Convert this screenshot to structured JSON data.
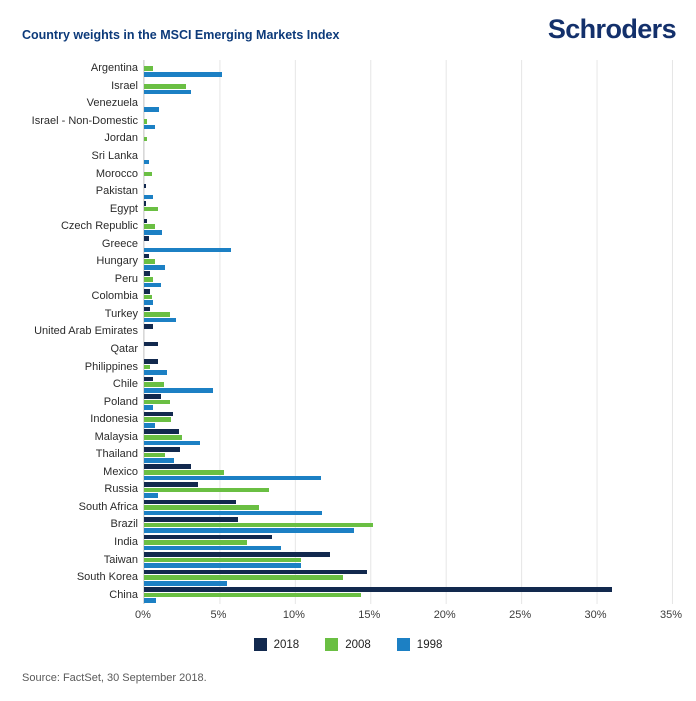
{
  "header": {
    "title": "Country weights in the MSCI Emerging Markets Index",
    "logo": "Schroders"
  },
  "footer": {
    "source": "Source: FactSet, 30 September 2018."
  },
  "chart_data": {
    "type": "bar",
    "orientation": "horizontal",
    "title": "Country weights in the MSCI Emerging Markets Index",
    "xlabel": "",
    "ylabel": "",
    "xlim": [
      0,
      35
    ],
    "xticks": [
      "0%",
      "5%",
      "10%",
      "15%",
      "20%",
      "25%",
      "30%",
      "35%"
    ],
    "grid": "vertical",
    "legend_position": "bottom",
    "categories": [
      "Argentina",
      "Israel",
      "Venezuela",
      "Israel - Non-Domestic",
      "Jordan",
      "Sri Lanka",
      "Morocco",
      "Pakistan",
      "Egypt",
      "Czech Republic",
      "Greece",
      "Hungary",
      "Peru",
      "Colombia",
      "Turkey",
      "United Arab Emirates",
      "Qatar",
      "Philippines",
      "Chile",
      "Poland",
      "Indonesia",
      "Malaysia",
      "Thailand",
      "Mexico",
      "Russia",
      "South Africa",
      "Brazil",
      "India",
      "Taiwan",
      "South Korea",
      "China"
    ],
    "series": [
      {
        "name": "2018",
        "color": "#12294e",
        "values": [
          0,
          0,
          0,
          0,
          0,
          0,
          0,
          0.1,
          0.1,
          0.2,
          0.3,
          0.3,
          0.4,
          0.4,
          0.4,
          0.6,
          0.9,
          0.9,
          0.6,
          1.1,
          1.9,
          2.3,
          2.4,
          3.1,
          3.6,
          6.1,
          6.2,
          8.5,
          12.3,
          14.8,
          31.0
        ]
      },
      {
        "name": "2008",
        "color": "#6abf43",
        "values": [
          0.6,
          2.8,
          0,
          0.2,
          0.2,
          0,
          0.5,
          0,
          0.9,
          0.7,
          0,
          0.7,
          0.6,
          0.5,
          1.7,
          0,
          0,
          0.4,
          1.3,
          1.7,
          1.8,
          2.5,
          1.4,
          5.3,
          8.3,
          7.6,
          15.2,
          6.8,
          10.4,
          13.2,
          14.4
        ]
      },
      {
        "name": "1998",
        "color": "#1c80c4",
        "values": [
          5.2,
          3.1,
          1.0,
          0.7,
          0,
          0.3,
          0,
          0.6,
          0,
          1.2,
          5.8,
          1.4,
          1.1,
          0.6,
          2.1,
          0,
          0,
          1.5,
          4.6,
          0.6,
          0.7,
          3.7,
          2.0,
          11.7,
          0.9,
          11.8,
          13.9,
          9.1,
          10.4,
          5.5,
          0.8
        ]
      }
    ]
  }
}
